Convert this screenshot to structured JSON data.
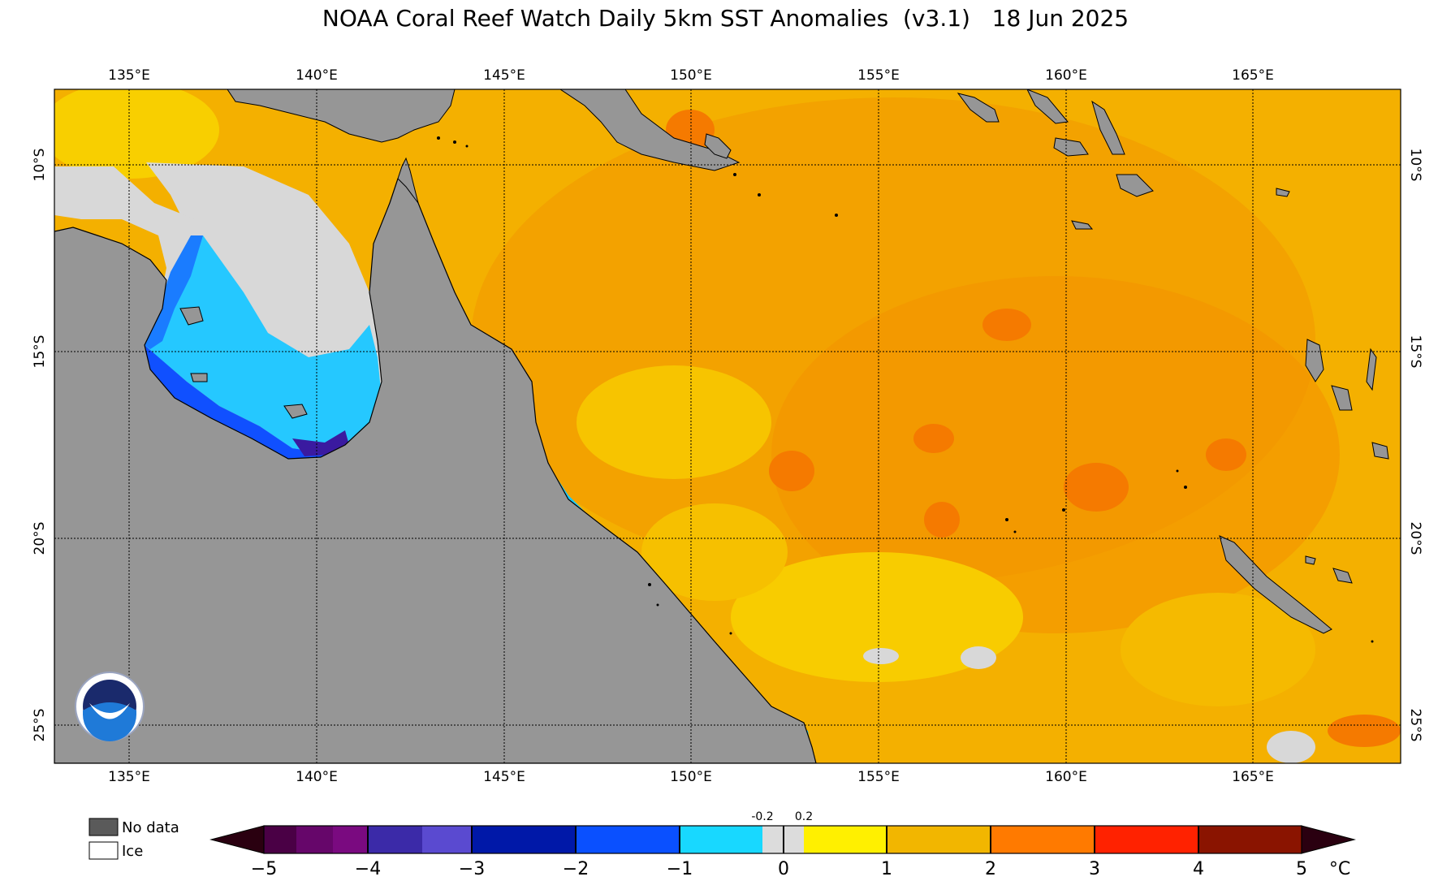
{
  "title": "NOAA Coral Reef Watch Daily 5km SST Anomalies  (v3.1)   18 Jun 2025",
  "lon_labels": [
    "135°E",
    "140°E",
    "145°E",
    "150°E",
    "155°E",
    "160°E",
    "165°E"
  ],
  "lat_labels": [
    "10°S",
    "15°S",
    "20°S",
    "25°S"
  ],
  "legend": {
    "no_data": "No data",
    "ice": "Ice"
  },
  "colorbar": {
    "ticks": [
      "−5",
      "−4",
      "−3",
      "−2",
      "−1",
      "0",
      "1",
      "2",
      "3",
      "4",
      "5"
    ],
    "small_labels": [
      "-0.2",
      "0.2"
    ],
    "unit": "°C",
    "colors": {
      "dark_purple": "#3a0030",
      "purple": "#7a0a80",
      "indigo": "#3b2aa8",
      "dark_blue": "#001ea8",
      "blue": "#0a50ff",
      "cyan": "#18d8ff",
      "near_zero": "#dcdcdc",
      "yellow": "#fff000",
      "gold": "#f2b600",
      "orange": "#ff7a00",
      "red": "#ff2200",
      "dark_red": "#8a1400"
    }
  },
  "map_colors": {
    "land": "#969696",
    "ocean_warm": "#f5b000",
    "ocean_orange": "#f29600",
    "ocean_cool": "#2aa8ff",
    "neutral": "#d9d9d9"
  }
}
